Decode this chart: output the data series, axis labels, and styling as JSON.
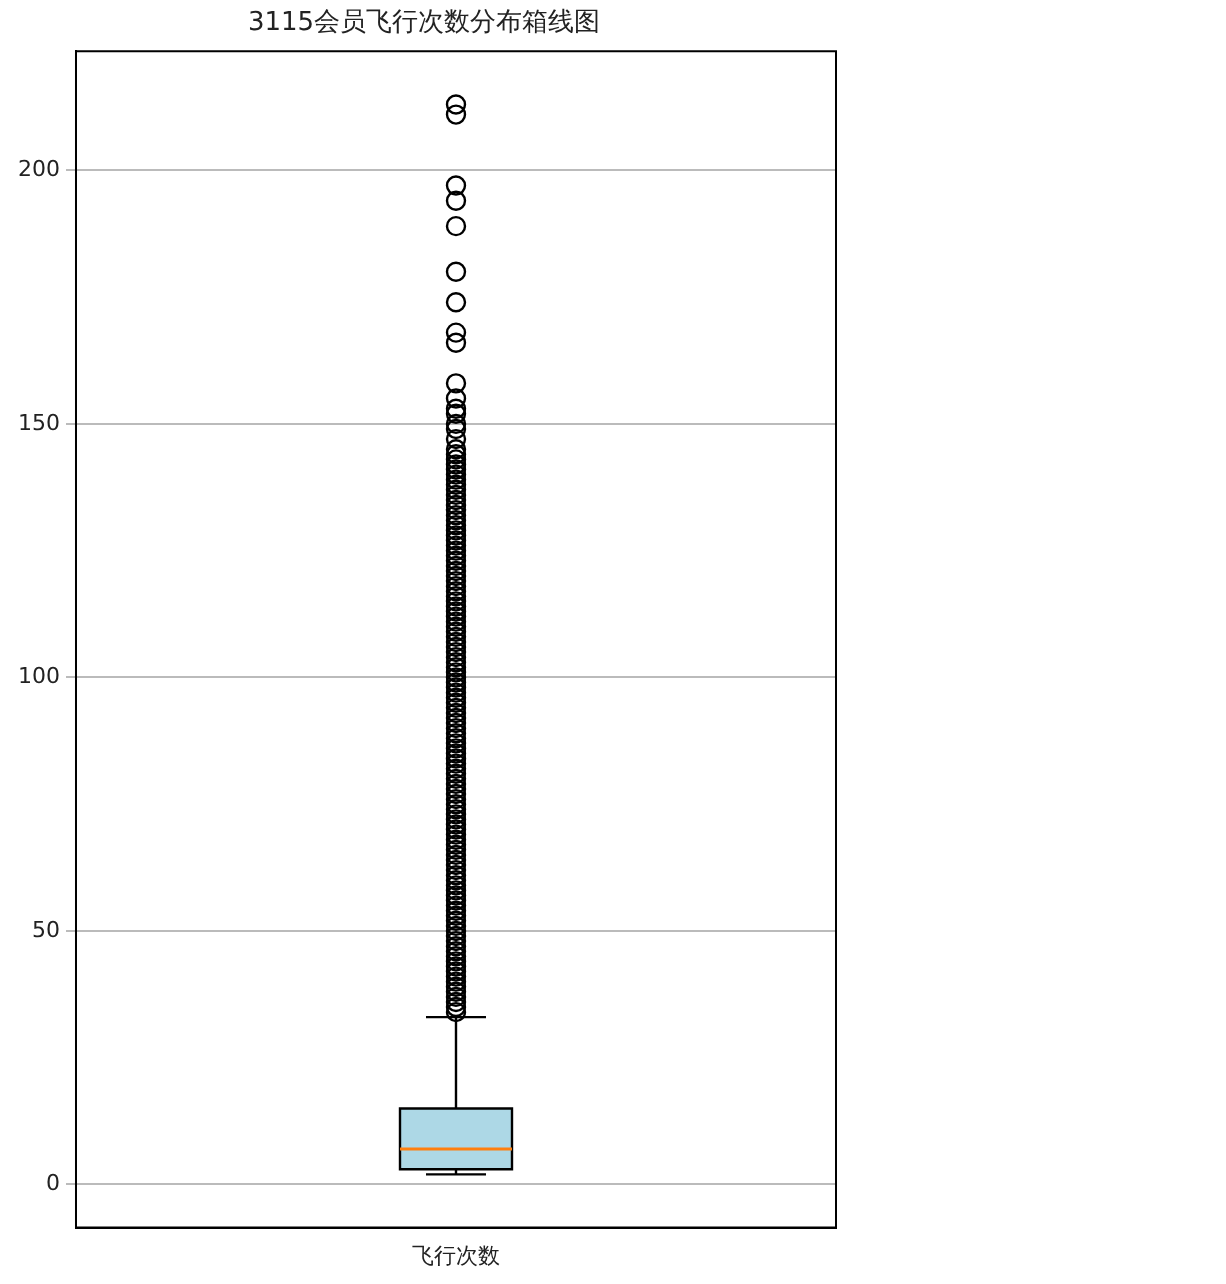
{
  "chart_data": {
    "type": "box",
    "title": "3115会员飞行次数分布箱线图",
    "categories": [
      "飞行次数"
    ],
    "series": [
      {
        "color": "#add8e6",
        "boxes": [
          {
            "low": 2,
            "q1": 3,
            "median": 7,
            "q3": 15,
            "high": 33,
            "outliers": [
              34,
              35,
              36,
              37,
              38,
              39,
              40,
              41,
              42,
              43,
              44,
              45,
              46,
              47,
              48,
              49,
              50,
              51,
              52,
              53,
              54,
              55,
              56,
              57,
              58,
              59,
              60,
              61,
              62,
              63,
              64,
              65,
              66,
              67,
              68,
              69,
              70,
              71,
              72,
              73,
              74,
              75,
              76,
              77,
              78,
              79,
              80,
              81,
              82,
              83,
              84,
              85,
              86,
              87,
              88,
              89,
              90,
              91,
              92,
              93,
              94,
              95,
              96,
              97,
              98,
              99,
              100,
              101,
              102,
              103,
              104,
              105,
              106,
              107,
              108,
              109,
              110,
              111,
              112,
              113,
              114,
              115,
              116,
              117,
              118,
              119,
              120,
              121,
              122,
              123,
              124,
              125,
              126,
              127,
              128,
              129,
              130,
              131,
              132,
              133,
              134,
              135,
              136,
              137,
              138,
              139,
              140,
              141,
              142,
              143,
              144,
              145,
              147,
              149,
              150,
              152,
              153,
              155,
              158,
              166,
              168,
              174,
              180,
              189,
              194,
              197,
              211,
              213
            ]
          }
        ]
      }
    ],
    "ylim": [
      -8.5,
      223.5
    ],
    "yticks": [
      0,
      50,
      100,
      150,
      200
    ],
    "grid": "y"
  }
}
